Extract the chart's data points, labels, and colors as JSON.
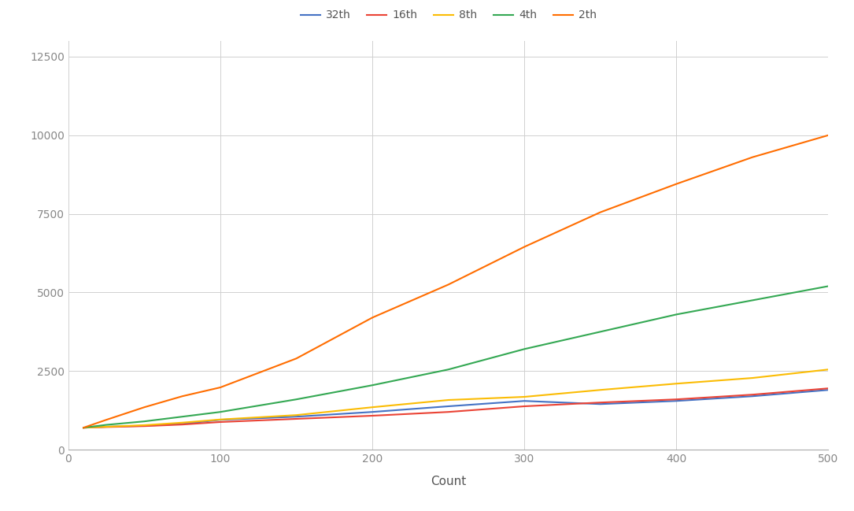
{
  "x": [
    10,
    25,
    50,
    75,
    100,
    150,
    200,
    250,
    300,
    350,
    400,
    450,
    500
  ],
  "series": {
    "32th": {
      "color": "#4472C4",
      "values": [
        700,
        730,
        760,
        820,
        950,
        1050,
        1200,
        1380,
        1550,
        1450,
        1550,
        1700,
        1900
      ]
    },
    "16th": {
      "color": "#EA4335",
      "values": [
        700,
        720,
        750,
        800,
        880,
        980,
        1080,
        1200,
        1380,
        1500,
        1600,
        1750,
        1950
      ]
    },
    "8th": {
      "color": "#FBBC04",
      "values": [
        700,
        730,
        780,
        860,
        960,
        1100,
        1350,
        1580,
        1680,
        1900,
        2100,
        2280,
        2550
      ]
    },
    "4th": {
      "color": "#34A853",
      "values": [
        700,
        790,
        900,
        1050,
        1200,
        1600,
        2050,
        2550,
        3200,
        3750,
        4300,
        4750,
        5200
      ]
    },
    "2th": {
      "color": "#FF6D00",
      "values": [
        700,
        950,
        1350,
        1700,
        1980,
        2900,
        4200,
        5250,
        6450,
        7550,
        8450,
        9300,
        10000
      ]
    }
  },
  "xlabel": "Count",
  "xlim": [
    0,
    500
  ],
  "ylim": [
    0,
    13000
  ],
  "yticks": [
    0,
    2500,
    5000,
    7500,
    10000,
    12500
  ],
  "xticks": [
    0,
    100,
    200,
    300,
    400,
    500
  ],
  "background_color": "#ffffff",
  "grid_color": "#d0d0d0",
  "legend_order": [
    "32th",
    "16th",
    "8th",
    "4th",
    "2th"
  ]
}
